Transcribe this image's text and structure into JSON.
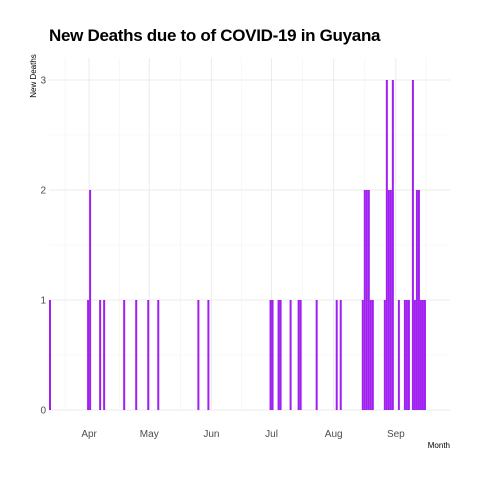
{
  "chart_data": {
    "type": "bar",
    "title": "New Deaths due to of COVID-19 in Guyana",
    "xlabel": "Month",
    "ylabel": "New Deaths",
    "ylim": [
      0,
      3.2
    ],
    "yticks": [
      0,
      1,
      2,
      3
    ],
    "xlim": [
      "2020-03-12",
      "2020-09-27"
    ],
    "xticks": [
      {
        "date": "2020-04-01",
        "label": "Apr"
      },
      {
        "date": "2020-05-01",
        "label": "May"
      },
      {
        "date": "2020-06-01",
        "label": "Jun"
      },
      {
        "date": "2020-07-01",
        "label": "Jul"
      },
      {
        "date": "2020-08-01",
        "label": "Aug"
      },
      {
        "date": "2020-09-01",
        "label": "Sep"
      }
    ],
    "grid": true,
    "bar_color": "#a020f0",
    "x": [
      "2020-03-12",
      "2020-03-31",
      "2020-04-01",
      "2020-04-06",
      "2020-04-08",
      "2020-04-18",
      "2020-04-24",
      "2020-04-30",
      "2020-05-05",
      "2020-05-25",
      "2020-05-30",
      "2020-06-30",
      "2020-07-01",
      "2020-07-04",
      "2020-07-05",
      "2020-07-10",
      "2020-07-14",
      "2020-07-15",
      "2020-07-23",
      "2020-08-02",
      "2020-08-04",
      "2020-08-15",
      "2020-08-16",
      "2020-08-17",
      "2020-08-18",
      "2020-08-19",
      "2020-08-20",
      "2020-08-26",
      "2020-08-27",
      "2020-08-28",
      "2020-08-29",
      "2020-08-30",
      "2020-09-02",
      "2020-09-05",
      "2020-09-06",
      "2020-09-07",
      "2020-09-09",
      "2020-09-10",
      "2020-09-11",
      "2020-09-12",
      "2020-09-13",
      "2020-09-14",
      "2020-09-15"
    ],
    "values": [
      1,
      1,
      2,
      1,
      1,
      1,
      1,
      1,
      1,
      1,
      1,
      1,
      1,
      1,
      1,
      1,
      1,
      1,
      1,
      1,
      1,
      1,
      2,
      2,
      2,
      1,
      1,
      1,
      3,
      2,
      2,
      3,
      1,
      1,
      1,
      1,
      3,
      1,
      2,
      2,
      1,
      1,
      1
    ]
  }
}
